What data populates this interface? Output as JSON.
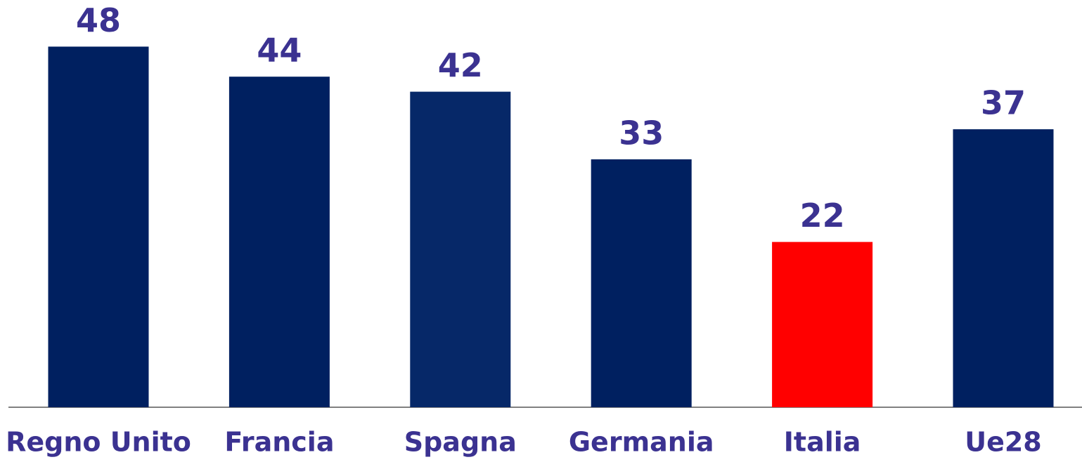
{
  "chart_data": {
    "type": "bar",
    "categories": [
      "Regno Unito",
      "Francia",
      "Spagna",
      "Germania",
      "Italia",
      "Ue28"
    ],
    "values": [
      48,
      44,
      42,
      33,
      22,
      37
    ],
    "colors": [
      "#002060",
      "#002060",
      "#062868",
      "#002060",
      "#ff0000",
      "#002060"
    ]
  }
}
